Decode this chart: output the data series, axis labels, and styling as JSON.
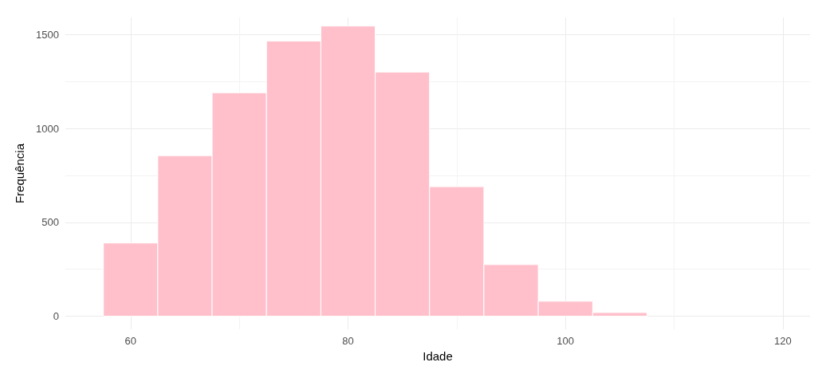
{
  "chart_data": {
    "type": "histogram",
    "xlabel": "Idade",
    "ylabel": "Frequência",
    "bins": [
      57.5,
      62.5,
      67.5,
      72.5,
      77.5,
      82.5,
      87.5,
      92.5,
      97.5,
      102.5,
      107.5
    ],
    "values": [
      390,
      855,
      1190,
      1465,
      1545,
      1300,
      690,
      275,
      80,
      20
    ],
    "color": "#ffc0cb",
    "xlim": [
      54,
      122.5
    ],
    "xticks": [
      60,
      80,
      100,
      120
    ],
    "ylim": [
      -70,
      1590
    ],
    "yticks": [
      0,
      500,
      1000,
      1500
    ],
    "grid": true
  }
}
